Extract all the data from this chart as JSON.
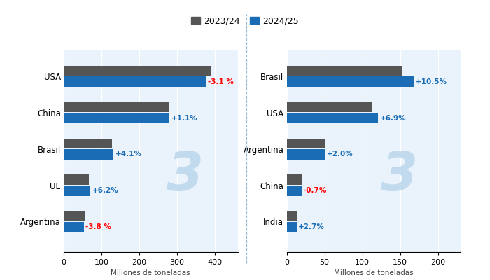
{
  "corn": {
    "categories": [
      "USA",
      "China",
      "Brasil",
      "UE",
      "Argentina"
    ],
    "values_2324": [
      389,
      277,
      127,
      67,
      55
    ],
    "values_2425": [
      377,
      280,
      132,
      71,
      53
    ],
    "pct_labels": [
      "-3.1 %",
      "+1.1%",
      "+4.1%",
      "+6.2%",
      "-3.8 %"
    ],
    "pct_colors": [
      "#ff0000",
      "#1a6cb5",
      "#1a6cb5",
      "#1a6cb5",
      "#ff0000"
    ],
    "xlim": [
      0,
      460
    ],
    "xticks": [
      0,
      100,
      200,
      300,
      400
    ],
    "xlabel": "Millones de toneladas"
  },
  "soy": {
    "categories": [
      "Brasil",
      "USA",
      "Argentina",
      "China",
      "India"
    ],
    "values_2324": [
      153,
      113,
      50,
      20,
      13
    ],
    "values_2425": [
      169,
      121,
      51,
      19.9,
      13.4
    ],
    "pct_labels": [
      "+10.5%",
      "+6.9%",
      "+2.0%",
      "-0.7%",
      "+2.7%"
    ],
    "pct_colors": [
      "#1a6cb5",
      "#1a6cb5",
      "#1a6cb5",
      "#ff0000",
      "#1a6cb5"
    ],
    "xlim": [
      0,
      230
    ],
    "xticks": [
      0,
      50,
      100,
      150,
      200
    ],
    "xlabel": "Millones de toneladas"
  },
  "color_2324": "#555555",
  "color_2425": "#1a6cb5",
  "legend_labels": [
    "2023/24",
    "2024/25"
  ],
  "bg_color": "#eaf3fb",
  "bar_height": 0.28,
  "bar_gap": 0.02
}
